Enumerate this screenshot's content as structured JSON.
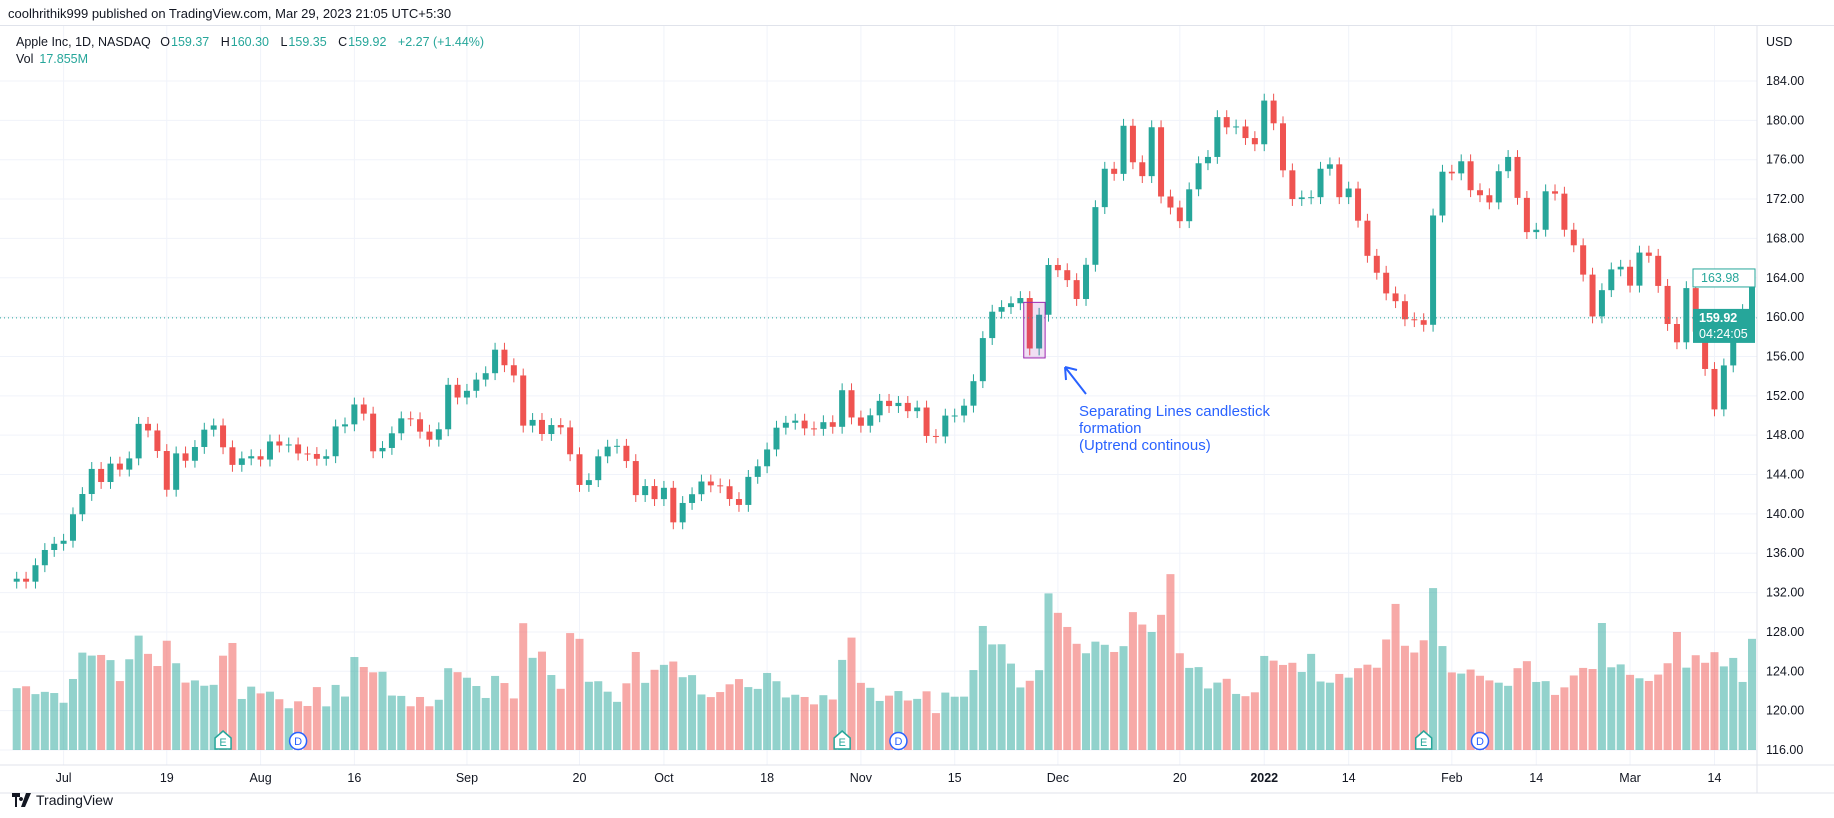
{
  "publish_line": "coolhrithik999 published on TradingView.com, Mar 29, 2023 21:05 UTC+5:30",
  "legend": {
    "symbol": "Apple Inc, 1D, NASDAQ",
    "o_label": "O",
    "o": "159.37",
    "h_label": "H",
    "h": "160.30",
    "l_label": "L",
    "l": "159.35",
    "c_label": "C",
    "c": "159.92",
    "change": "+2.27 (+1.44%)",
    "vol_label": "Vol",
    "vol": "17.855M"
  },
  "annotation": {
    "lines": [
      "Separating Lines candlestick",
      "formation",
      "(Uptrend continous)"
    ],
    "highlight_dates": [
      "2021-11-26",
      "2021-11-29"
    ],
    "highlight_price_range": [
      155.85,
      161.5
    ],
    "color": "#2962ff"
  },
  "footer": {
    "brand": "TradingView"
  },
  "colors": {
    "up": "#26a69a",
    "down": "#ef5350",
    "highlight": "#9c27b0"
  },
  "chart_data": {
    "type": "candlestick",
    "currency": "USD",
    "y_ticks": [
      "184.00",
      "180.00",
      "176.00",
      "172.00",
      "168.00",
      "164.00",
      "160.00",
      "156.00",
      "152.00",
      "148.00",
      "144.00",
      "140.00",
      "136.00",
      "132.00",
      "128.00",
      "124.00",
      "120.00",
      "116.00"
    ],
    "ylim": [
      116,
      184
    ],
    "price_labels": {
      "last_close": "163.98",
      "current": "159.92",
      "countdown": "04:24:05"
    },
    "current_price": 159.92,
    "x_ticks": [
      {
        "label": "Jul",
        "date": "2021-07-01"
      },
      {
        "label": "19",
        "date": "2021-07-19"
      },
      {
        "label": "Aug",
        "date": "2021-08-02"
      },
      {
        "label": "16",
        "date": "2021-08-16"
      },
      {
        "label": "Sep",
        "date": "2021-09-01"
      },
      {
        "label": "20",
        "date": "2021-09-20"
      },
      {
        "label": "Oct",
        "date": "2021-10-01"
      },
      {
        "label": "18",
        "date": "2021-10-18"
      },
      {
        "label": "Nov",
        "date": "2021-11-01"
      },
      {
        "label": "15",
        "date": "2021-11-15"
      },
      {
        "label": "Dec",
        "date": "2021-12-01"
      },
      {
        "label": "20",
        "date": "2021-12-20"
      },
      {
        "label": "2022",
        "date": "2022-01-03"
      },
      {
        "label": "14",
        "date": "2022-01-14"
      },
      {
        "label": "Feb",
        "date": "2022-02-01"
      },
      {
        "label": "14",
        "date": "2022-02-14"
      },
      {
        "label": "Mar",
        "date": "2022-03-01"
      },
      {
        "label": "14",
        "date": "2022-03-14"
      }
    ],
    "events": [
      {
        "type": "E",
        "date": "2021-07-27"
      },
      {
        "type": "D",
        "date": "2021-08-06"
      },
      {
        "type": "E",
        "date": "2021-10-28"
      },
      {
        "type": "D",
        "date": "2021-11-05"
      },
      {
        "type": "E",
        "date": "2022-01-27"
      },
      {
        "type": "D",
        "date": "2022-02-04"
      }
    ],
    "columns": [
      "date",
      "close",
      "volume_M"
    ],
    "bars": [
      [
        "2021-06-24",
        133.41,
        68.7
      ],
      [
        "2021-06-25",
        133.11,
        70.8
      ],
      [
        "2021-06-28",
        134.78,
        62.1
      ],
      [
        "2021-06-29",
        136.33,
        64.6
      ],
      [
        "2021-06-30",
        136.96,
        63.3
      ],
      [
        "2021-07-01",
        137.27,
        52.5
      ],
      [
        "2021-07-02",
        139.96,
        78.9
      ],
      [
        "2021-07-06",
        142.02,
        108.2
      ],
      [
        "2021-07-07",
        144.57,
        104.9
      ],
      [
        "2021-07-08",
        143.24,
        105.6
      ],
      [
        "2021-07-09",
        145.11,
        99.9
      ],
      [
        "2021-07-12",
        144.5,
        76.6
      ],
      [
        "2021-07-13",
        145.64,
        100.8
      ],
      [
        "2021-07-14",
        149.15,
        127.1
      ],
      [
        "2021-07-15",
        148.48,
        106.8
      ],
      [
        "2021-07-16",
        146.39,
        93.3
      ],
      [
        "2021-07-19",
        142.45,
        121.4
      ],
      [
        "2021-07-20",
        146.15,
        96.4
      ],
      [
        "2021-07-21",
        145.4,
        74.9
      ],
      [
        "2021-07-22",
        146.8,
        77.3
      ],
      [
        "2021-07-23",
        148.56,
        71.4
      ],
      [
        "2021-07-26",
        148.99,
        72.4
      ],
      [
        "2021-07-27",
        146.77,
        104.8
      ],
      [
        "2021-07-28",
        144.98,
        118.9
      ],
      [
        "2021-07-29",
        145.64,
        56.7
      ],
      [
        "2021-07-30",
        145.86,
        70.4
      ],
      [
        "2021-08-02",
        145.52,
        62.9
      ],
      [
        "2021-08-03",
        147.36,
        64.8
      ],
      [
        "2021-08-04",
        146.95,
        56.4
      ],
      [
        "2021-08-05",
        147.06,
        46.4
      ],
      [
        "2021-08-06",
        146.14,
        54.1
      ],
      [
        "2021-08-09",
        146.09,
        48.9
      ],
      [
        "2021-08-10",
        145.6,
        69.9
      ],
      [
        "2021-08-11",
        145.86,
        48.5
      ],
      [
        "2021-08-12",
        148.89,
        72.3
      ],
      [
        "2021-08-13",
        149.1,
        59.4
      ],
      [
        "2021-08-16",
        151.12,
        103.3
      ],
      [
        "2021-08-17",
        150.19,
        92.2
      ],
      [
        "2021-08-18",
        146.36,
        86.3
      ],
      [
        "2021-08-19",
        146.7,
        86.9
      ],
      [
        "2021-08-20",
        148.19,
        60.5
      ],
      [
        "2021-08-23",
        149.71,
        60.1
      ],
      [
        "2021-08-24",
        149.62,
        48.6
      ],
      [
        "2021-08-25",
        148.36,
        58.9
      ],
      [
        "2021-08-26",
        147.54,
        48.6
      ],
      [
        "2021-08-27",
        148.6,
        55.8
      ],
      [
        "2021-08-30",
        153.12,
        90.9
      ],
      [
        "2021-08-31",
        151.83,
        86.5
      ],
      [
        "2021-09-01",
        152.51,
        80.3
      ],
      [
        "2021-09-02",
        153.65,
        71.1
      ],
      [
        "2021-09-03",
        154.3,
        57.8
      ],
      [
        "2021-09-07",
        156.69,
        82.3
      ],
      [
        "2021-09-08",
        155.11,
        74.4
      ],
      [
        "2021-09-09",
        154.07,
        57.3
      ],
      [
        "2021-09-10",
        148.97,
        140.9
      ],
      [
        "2021-09-13",
        149.55,
        102.4
      ],
      [
        "2021-09-14",
        148.12,
        109.3
      ],
      [
        "2021-09-15",
        149.03,
        83.3
      ],
      [
        "2021-09-16",
        148.79,
        68.0
      ],
      [
        "2021-09-17",
        146.06,
        129.9
      ],
      [
        "2021-09-20",
        142.94,
        123.5
      ],
      [
        "2021-09-21",
        143.43,
        75.8
      ],
      [
        "2021-09-22",
        145.85,
        76.4
      ],
      [
        "2021-09-23",
        146.83,
        64.8
      ],
      [
        "2021-09-24",
        146.92,
        53.5
      ],
      [
        "2021-09-27",
        145.37,
        74.1
      ],
      [
        "2021-09-28",
        141.91,
        108.9
      ],
      [
        "2021-09-29",
        142.83,
        74.6
      ],
      [
        "2021-09-30",
        141.5,
        89.1
      ],
      [
        "2021-10-01",
        142.65,
        94.6
      ],
      [
        "2021-10-04",
        139.14,
        98.3
      ],
      [
        "2021-10-05",
        141.11,
        80.9
      ],
      [
        "2021-10-06",
        142.0,
        83.2
      ],
      [
        "2021-10-07",
        143.29,
        61.7
      ],
      [
        "2021-10-08",
        142.9,
        58.8
      ],
      [
        "2021-10-11",
        142.81,
        64.4
      ],
      [
        "2021-10-12",
        141.51,
        73.0
      ],
      [
        "2021-10-13",
        140.91,
        78.8
      ],
      [
        "2021-10-14",
        143.76,
        69.9
      ],
      [
        "2021-10-15",
        144.84,
        67.9
      ],
      [
        "2021-10-18",
        146.55,
        85.6
      ],
      [
        "2021-10-19",
        148.76,
        76.4
      ],
      [
        "2021-10-20",
        149.26,
        58.4
      ],
      [
        "2021-10-21",
        149.48,
        61.4
      ],
      [
        "2021-10-22",
        148.69,
        58.9
      ],
      [
        "2021-10-25",
        148.64,
        50.7
      ],
      [
        "2021-10-26",
        149.32,
        60.9
      ],
      [
        "2021-10-27",
        148.85,
        56.1
      ],
      [
        "2021-10-28",
        152.57,
        100.1
      ],
      [
        "2021-10-29",
        149.8,
        124.9
      ],
      [
        "2021-11-01",
        148.96,
        74.6
      ],
      [
        "2021-11-02",
        150.02,
        69.1
      ],
      [
        "2021-11-03",
        151.49,
        54.5
      ],
      [
        "2021-11-04",
        150.96,
        60.4
      ],
      [
        "2021-11-05",
        151.28,
        65.5
      ],
      [
        "2021-11-08",
        150.44,
        55.0
      ],
      [
        "2021-11-09",
        150.81,
        56.8
      ],
      [
        "2021-11-10",
        147.92,
        65.2
      ],
      [
        "2021-11-11",
        147.87,
        41.0
      ],
      [
        "2021-11-12",
        149.99,
        63.8
      ],
      [
        "2021-11-15",
        150.0,
        59.2
      ],
      [
        "2021-11-16",
        151.0,
        59.3
      ],
      [
        "2021-11-17",
        153.49,
        88.8
      ],
      [
        "2021-11-18",
        157.87,
        137.8
      ],
      [
        "2021-11-19",
        160.55,
        117.3
      ],
      [
        "2021-11-22",
        161.02,
        117.5
      ],
      [
        "2021-11-23",
        161.41,
        96.0
      ],
      [
        "2021-11-24",
        161.94,
        69.5
      ],
      [
        "2021-11-26",
        156.81,
        76.9
      ],
      [
        "2021-11-29",
        160.24,
        88.7
      ],
      [
        "2021-11-30",
        165.3,
        174.0
      ],
      [
        "2021-12-01",
        164.77,
        152.4
      ],
      [
        "2021-12-02",
        163.76,
        136.7
      ],
      [
        "2021-12-03",
        161.84,
        118.0
      ],
      [
        "2021-12-06",
        165.32,
        107.5
      ],
      [
        "2021-12-07",
        171.18,
        120.4
      ],
      [
        "2021-12-08",
        175.08,
        116.9
      ],
      [
        "2021-12-09",
        174.56,
        108.9
      ],
      [
        "2021-12-10",
        179.45,
        115.4
      ],
      [
        "2021-12-13",
        175.74,
        153.2
      ],
      [
        "2021-12-14",
        174.33,
        139.4
      ],
      [
        "2021-12-15",
        179.3,
        131.1
      ],
      [
        "2021-12-16",
        172.26,
        150.2
      ],
      [
        "2021-12-17",
        171.14,
        195.4
      ],
      [
        "2021-12-20",
        169.75,
        107.5
      ],
      [
        "2021-12-21",
        172.99,
        91.2
      ],
      [
        "2021-12-22",
        175.64,
        92.1
      ],
      [
        "2021-12-23",
        176.28,
        68.4
      ],
      [
        "2021-12-27",
        180.33,
        74.9
      ],
      [
        "2021-12-28",
        179.29,
        79.1
      ],
      [
        "2021-12-29",
        179.38,
        62.3
      ],
      [
        "2021-12-30",
        178.2,
        59.8
      ],
      [
        "2021-12-31",
        177.57,
        64.1
      ],
      [
        "2022-01-03",
        182.01,
        104.5
      ],
      [
        "2022-01-04",
        179.7,
        99.3
      ],
      [
        "2022-01-05",
        174.92,
        94.5
      ],
      [
        "2022-01-06",
        172.0,
        96.9
      ],
      [
        "2022-01-07",
        172.17,
        86.7
      ],
      [
        "2022-01-10",
        172.19,
        106.8
      ],
      [
        "2022-01-11",
        175.08,
        76.1
      ],
      [
        "2022-01-12",
        175.53,
        74.8
      ],
      [
        "2022-01-13",
        172.19,
        84.5
      ],
      [
        "2022-01-14",
        173.07,
        80.4
      ],
      [
        "2022-01-18",
        169.8,
        90.9
      ],
      [
        "2022-01-19",
        166.23,
        94.8
      ],
      [
        "2022-01-20",
        164.51,
        91.4
      ],
      [
        "2022-01-21",
        162.41,
        122.8
      ],
      [
        "2022-01-24",
        161.62,
        162.3
      ],
      [
        "2022-01-25",
        159.78,
        115.8
      ],
      [
        "2022-01-26",
        159.69,
        108.3
      ],
      [
        "2022-01-27",
        159.22,
        121.9
      ],
      [
        "2022-01-28",
        170.33,
        179.9
      ],
      [
        "2022-01-31",
        174.78,
        115.5
      ],
      [
        "2022-02-01",
        174.61,
        86.2
      ],
      [
        "2022-02-02",
        175.84,
        84.9
      ],
      [
        "2022-02-03",
        172.9,
        89.4
      ],
      [
        "2022-02-04",
        172.39,
        82.5
      ],
      [
        "2022-02-07",
        171.66,
        77.3
      ],
      [
        "2022-02-08",
        174.83,
        74.8
      ],
      [
        "2022-02-09",
        176.28,
        71.3
      ],
      [
        "2022-02-10",
        172.12,
        90.9
      ],
      [
        "2022-02-11",
        168.64,
        98.7
      ],
      [
        "2022-02-14",
        168.88,
        75.6
      ],
      [
        "2022-02-15",
        172.79,
        76.5
      ],
      [
        "2022-02-16",
        172.55,
        61.2
      ],
      [
        "2022-02-17",
        168.88,
        69.6
      ],
      [
        "2022-02-18",
        167.3,
        82.8
      ],
      [
        "2022-02-22",
        164.32,
        91.2
      ],
      [
        "2022-02-23",
        160.07,
        90.0
      ],
      [
        "2022-02-24",
        162.74,
        141.1
      ],
      [
        "2022-02-25",
        164.85,
        91.9
      ],
      [
        "2022-02-28",
        165.12,
        95.1
      ],
      [
        "2022-03-01",
        163.2,
        83.5
      ],
      [
        "2022-03-02",
        166.56,
        79.7
      ],
      [
        "2022-03-03",
        166.23,
        76.7
      ],
      [
        "2022-03-04",
        163.17,
        83.8
      ],
      [
        "2022-03-07",
        159.3,
        96.4
      ],
      [
        "2022-03-08",
        157.44,
        131.1
      ],
      [
        "2022-03-09",
        162.95,
        91.5
      ],
      [
        "2022-03-10",
        158.52,
        105.3
      ],
      [
        "2022-03-11",
        154.73,
        96.9
      ],
      [
        "2022-03-14",
        150.62,
        108.7
      ],
      [
        "2022-03-15",
        155.09,
        92.9
      ],
      [
        "2022-03-16",
        159.59,
        102.3
      ],
      [
        "2022-03-17",
        160.62,
        75.6
      ],
      [
        "2022-03-18",
        163.98,
        123.5
      ]
    ]
  }
}
